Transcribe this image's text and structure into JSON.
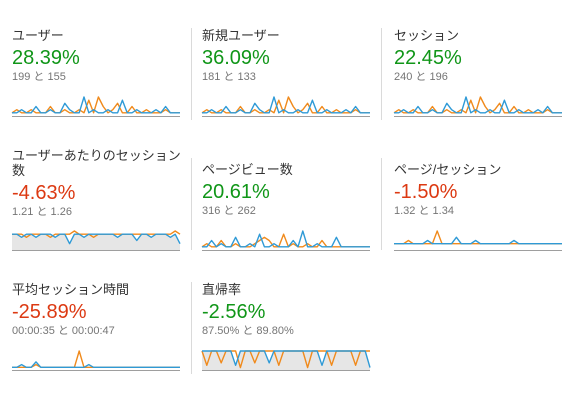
{
  "colors": {
    "positive": "#109618",
    "negative": "#dc3912",
    "series_current": "#2f9ad6",
    "series_previous": "#f08a1c"
  },
  "metrics": [
    {
      "label": "ユーザー",
      "change": "28.39%",
      "direction": "up",
      "compare": "199 と 155",
      "spark_current": [
        1,
        1,
        2,
        1,
        1,
        3,
        1,
        1,
        2,
        1,
        1,
        4,
        2,
        1,
        1,
        6,
        1,
        2,
        1,
        1,
        2,
        1,
        1,
        5,
        1,
        1,
        2,
        1,
        1,
        1,
        2,
        1,
        3,
        1,
        1,
        1
      ],
      "spark_previous": [
        1,
        2,
        1,
        1,
        2,
        1,
        1,
        1,
        3,
        1,
        1,
        2,
        1,
        1,
        2,
        1,
        5,
        1,
        6,
        3,
        1,
        2,
        4,
        1,
        1,
        3,
        1,
        1,
        2,
        1,
        1,
        1,
        2,
        1,
        1,
        1
      ]
    },
    {
      "label": "新規ユーザー",
      "change": "36.09%",
      "direction": "up",
      "compare": "181 と 133",
      "spark_current": [
        1,
        1,
        2,
        1,
        1,
        3,
        1,
        1,
        2,
        1,
        1,
        4,
        2,
        1,
        1,
        6,
        1,
        2,
        1,
        1,
        2,
        1,
        1,
        5,
        1,
        1,
        2,
        1,
        1,
        1,
        2,
        1,
        3,
        1,
        1,
        1
      ],
      "spark_previous": [
        1,
        2,
        1,
        1,
        2,
        1,
        1,
        1,
        3,
        1,
        1,
        2,
        1,
        1,
        2,
        1,
        5,
        1,
        6,
        3,
        1,
        2,
        4,
        1,
        1,
        3,
        1,
        1,
        2,
        1,
        1,
        1,
        2,
        1,
        1,
        1
      ]
    },
    {
      "label": "セッション",
      "change": "22.45%",
      "direction": "up",
      "compare": "240 と 196",
      "spark_current": [
        1,
        1,
        2,
        1,
        1,
        3,
        1,
        1,
        2,
        1,
        1,
        4,
        2,
        1,
        1,
        6,
        1,
        2,
        1,
        1,
        2,
        1,
        1,
        5,
        1,
        1,
        2,
        1,
        1,
        1,
        2,
        1,
        3,
        1,
        1,
        1
      ],
      "spark_previous": [
        1,
        2,
        1,
        1,
        2,
        1,
        1,
        1,
        3,
        1,
        1,
        2,
        1,
        1,
        2,
        1,
        5,
        1,
        6,
        3,
        1,
        2,
        4,
        1,
        1,
        3,
        1,
        1,
        2,
        1,
        1,
        1,
        2,
        1,
        1,
        1
      ]
    },
    {
      "label": "ユーザーあたりのセッション数",
      "change": "-4.63%",
      "direction": "down",
      "compare": "1.21 と 1.26",
      "spark_current": [
        5,
        5,
        4,
        5,
        5,
        4,
        5,
        5,
        5,
        4,
        5,
        5,
        2,
        5,
        5,
        4,
        5,
        5,
        5,
        5,
        5,
        5,
        4,
        5,
        5,
        5,
        3,
        5,
        5,
        4,
        5,
        5,
        5,
        4,
        5,
        2
      ],
      "spark_previous": [
        5,
        5,
        5,
        4,
        5,
        5,
        5,
        5,
        4,
        5,
        5,
        5,
        5,
        6,
        5,
        5,
        5,
        4,
        5,
        5,
        5,
        5,
        5,
        5,
        5,
        5,
        5,
        5,
        5,
        5,
        5,
        5,
        5,
        5,
        6,
        5
      ]
    },
    {
      "label": "ページビュー数",
      "change": "20.61%",
      "direction": "up",
      "compare": "316 と 262",
      "spark_current": [
        1,
        1,
        3,
        1,
        2,
        1,
        1,
        4,
        1,
        1,
        2,
        1,
        5,
        1,
        1,
        2,
        1,
        1,
        1,
        3,
        1,
        6,
        1,
        1,
        2,
        1,
        1,
        1,
        4,
        1,
        1,
        1,
        1,
        1,
        1,
        1
      ],
      "spark_previous": [
        1,
        2,
        1,
        1,
        3,
        1,
        1,
        2,
        1,
        1,
        1,
        2,
        3,
        4,
        3,
        1,
        1,
        5,
        1,
        2,
        1,
        1,
        2,
        1,
        1,
        3,
        1,
        1,
        1,
        1,
        1,
        1,
        1,
        1,
        1,
        1
      ]
    },
    {
      "label": "ページ/セッション",
      "change": "-1.50%",
      "direction": "down",
      "compare": "1.32 と 1.34",
      "spark_current": [
        2,
        2,
        2,
        2,
        2,
        2,
        2,
        3,
        2,
        2,
        2,
        2,
        2,
        4,
        2,
        2,
        2,
        3,
        2,
        2,
        2,
        2,
        2,
        2,
        2,
        3,
        2,
        2,
        2,
        2,
        2,
        2,
        2,
        2,
        2,
        2
      ],
      "spark_previous": [
        2,
        2,
        2,
        3,
        2,
        2,
        2,
        2,
        2,
        6,
        2,
        2,
        2,
        2,
        2,
        2,
        2,
        2,
        2,
        2,
        2,
        2,
        2,
        2,
        2,
        2,
        2,
        2,
        2,
        2,
        2,
        2,
        2,
        2,
        2,
        2
      ]
    },
    {
      "label": "平均セッション時間",
      "change": "-25.89%",
      "direction": "down",
      "compare": "00:00:35 と 00:00:47",
      "spark_current": [
        1,
        1,
        2,
        1,
        1,
        3,
        1,
        1,
        1,
        1,
        1,
        1,
        1,
        1,
        1,
        1,
        2,
        1,
        1,
        1,
        1,
        1,
        1,
        1,
        1,
        1,
        1,
        1,
        1,
        1,
        1,
        1,
        1,
        1,
        1,
        1
      ],
      "spark_previous": [
        1,
        1,
        1,
        1,
        1,
        2,
        1,
        1,
        1,
        1,
        1,
        1,
        1,
        1,
        7,
        1,
        1,
        1,
        1,
        1,
        1,
        1,
        1,
        1,
        1,
        1,
        1,
        1,
        1,
        1,
        1,
        1,
        1,
        1,
        1,
        1
      ]
    },
    {
      "label": "直帰率",
      "change": "-2.56%",
      "direction": "up",
      "compare": "87.50% と 89.80%",
      "spark_current": [
        8,
        8,
        8,
        8,
        8,
        8,
        8,
        2,
        8,
        8,
        8,
        8,
        8,
        8,
        3,
        8,
        8,
        8,
        8,
        8,
        8,
        8,
        8,
        8,
        8,
        2,
        8,
        8,
        8,
        8,
        8,
        8,
        8,
        8,
        8,
        1
      ],
      "spark_previous": [
        8,
        2,
        8,
        8,
        3,
        8,
        8,
        8,
        1,
        8,
        8,
        3,
        8,
        8,
        8,
        8,
        2,
        8,
        8,
        8,
        8,
        8,
        1,
        8,
        8,
        8,
        8,
        2,
        8,
        8,
        8,
        8,
        2,
        8,
        8,
        8
      ]
    }
  ]
}
